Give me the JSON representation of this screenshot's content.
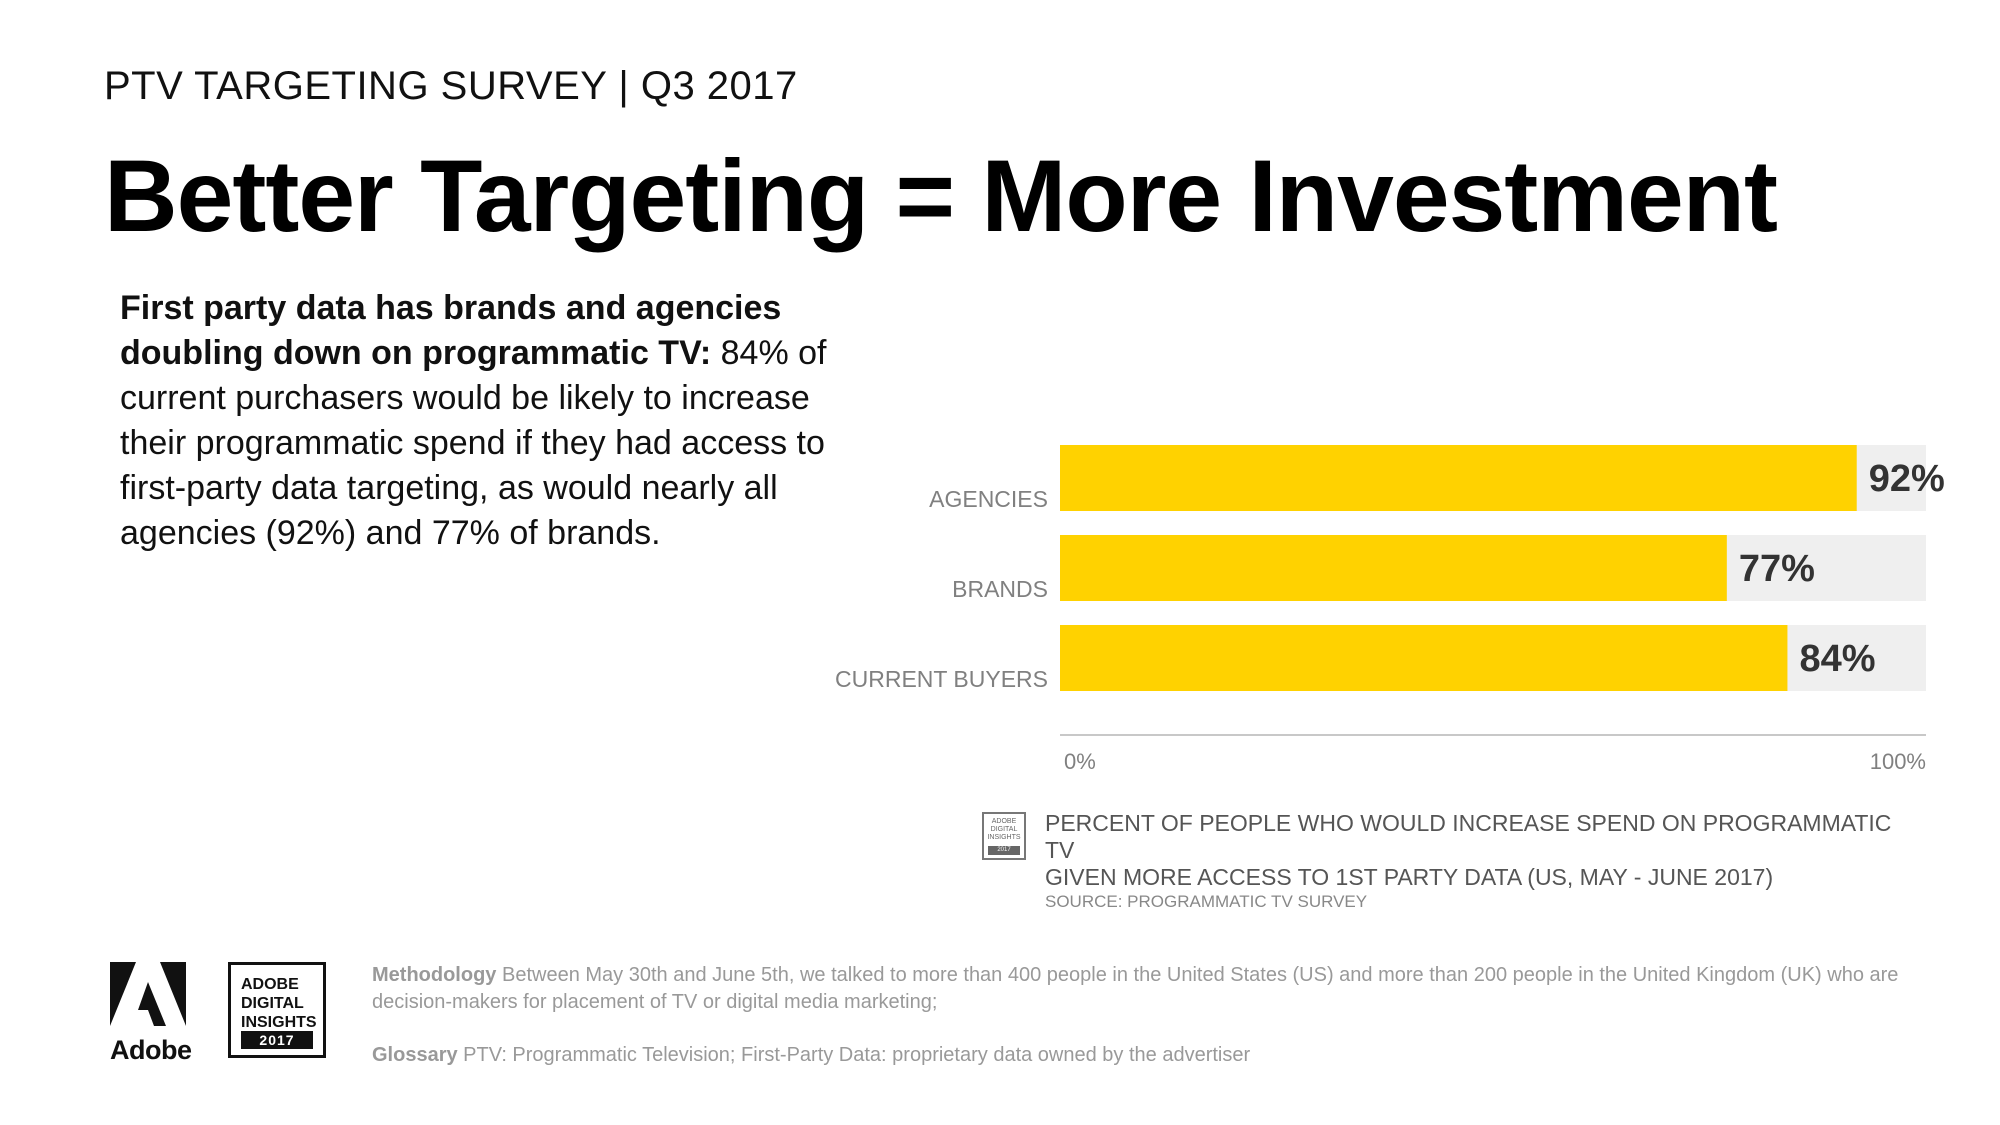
{
  "header": {
    "eyebrow": "PTV TARGETING SURVEY | Q3 2017",
    "title": "Better Targeting = More Investment"
  },
  "intro": {
    "bold": "First party data has brands and agencies doubling down on programmatic TV:",
    "rest": " 84% of current purchasers would be likely to increase their programmatic spend if they had access to first-party data targeting, as would nearly all agencies (92%) and 77% of brands."
  },
  "colors": {
    "bar": "#FFD200",
    "track": "#EFEFEF",
    "axis": "#C8C8C8"
  },
  "chart_data": {
    "type": "bar",
    "orientation": "horizontal",
    "categories": [
      "AGENCIES",
      "BRANDS",
      "CURRENT BUYERS"
    ],
    "values": [
      92,
      77,
      84
    ],
    "value_labels": [
      "92%",
      "77%",
      "84%"
    ],
    "xlim": [
      0,
      100
    ],
    "x_ticks": [
      "0%",
      "100%"
    ],
    "title": "PERCENT OF PEOPLE WHO WOULD INCREASE SPEND ON PROGRAMMATIC TV GIVEN MORE ACCESS TO 1ST PARTY DATA (US, MAY - JUNE 2017)",
    "source": "SOURCE: PROGRAMMATIC TV SURVEY"
  },
  "caption": {
    "line1": "PERCENT OF PEOPLE WHO WOULD INCREASE SPEND ON PROGRAMMATIC TV",
    "line2": "GIVEN MORE ACCESS TO 1ST PARTY DATA (US, MAY - JUNE 2017)",
    "source": "SOURCE: PROGRAMMATIC TV SURVEY"
  },
  "small_badge": {
    "lines": [
      "ADOBE",
      "DIGITAL",
      "INSIGHTS"
    ],
    "year": "2017"
  },
  "footer": {
    "adobe_word": "Adobe",
    "adi_lines": [
      "ADOBE",
      "DIGITAL",
      "INSIGHTS"
    ],
    "adi_year": "2017",
    "methodology_label": "Methodology",
    "methodology_text": " Between May 30th and June 5th, we talked to more than 400 people in the United States (US) and more than 200 people in the United Kingdom (UK) who are decision-makers for placement of TV or digital media marketing;",
    "glossary_label": "Glossary",
    "glossary_text": " PTV: Programmatic Television; First-Party Data: proprietary data owned by the advertiser"
  }
}
